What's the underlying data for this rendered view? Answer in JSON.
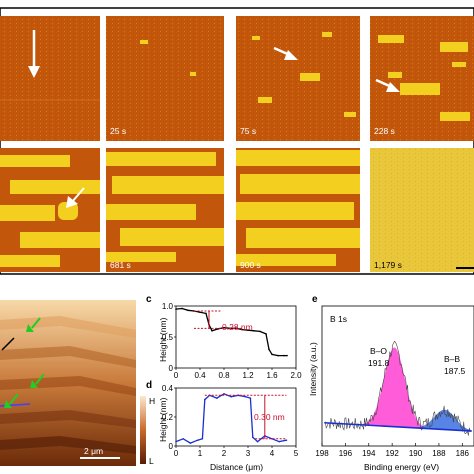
{
  "frame_row1": {
    "labels": [
      "",
      "25 s",
      "75 s",
      "228 s"
    ]
  },
  "frame_row2": {
    "labels": [
      "",
      "681 s",
      "900 s",
      "1,179 s"
    ]
  },
  "afm": {
    "colorbar_high": "H",
    "colorbar_low": "L",
    "scalebar": "2 μm"
  },
  "panels": {
    "c": {
      "label": "c",
      "annotation": "0.28 nm"
    },
    "d": {
      "label": "d",
      "annotation": "0.30 nm"
    },
    "e": {
      "label": "e",
      "title": "B 1s"
    }
  },
  "chart_data": [
    {
      "type": "line",
      "panel": "c",
      "ylabel": "Height (nm)",
      "xlim": [
        0,
        2.0
      ],
      "ylim": [
        0,
        1.0
      ],
      "x_ticks": [
        "0",
        "0.4",
        "0.8",
        "1.2",
        "1.6",
        "2.0"
      ],
      "y_ticks": [
        "0",
        "0.5",
        "1.0"
      ],
      "series": [
        {
          "x": [
            0.0,
            0.1,
            0.2,
            0.3,
            0.4,
            0.5,
            0.55,
            0.6,
            0.7,
            0.8,
            0.9,
            1.0,
            1.1,
            1.2,
            1.3,
            1.4,
            1.5,
            1.55,
            1.6,
            1.7,
            1.8,
            1.85
          ],
          "y": [
            0.95,
            0.96,
            0.93,
            0.92,
            0.9,
            0.88,
            0.7,
            0.6,
            0.63,
            0.65,
            0.64,
            0.64,
            0.62,
            0.61,
            0.6,
            0.59,
            0.55,
            0.3,
            0.22,
            0.2,
            0.2,
            0.2
          ]
        }
      ]
    },
    {
      "type": "line",
      "panel": "d",
      "ylabel": "Height (nm)",
      "xlabel": "Distance (μm)",
      "xlim": [
        0,
        5
      ],
      "ylim": [
        0,
        0.4
      ],
      "x_ticks": [
        "0",
        "1",
        "2",
        "3",
        "4",
        "5"
      ],
      "y_ticks": [
        "0",
        "0.2",
        "0.4"
      ],
      "series": [
        {
          "x": [
            0.0,
            0.3,
            0.6,
            0.9,
            1.1,
            1.2,
            1.4,
            1.7,
            2.0,
            2.3,
            2.6,
            2.9,
            3.1,
            3.2,
            3.4,
            3.7,
            4.0,
            4.3,
            4.6
          ],
          "y": [
            0.03,
            0.05,
            0.02,
            0.04,
            0.05,
            0.32,
            0.35,
            0.33,
            0.36,
            0.34,
            0.35,
            0.34,
            0.33,
            0.06,
            0.03,
            0.07,
            0.05,
            0.03,
            0.04
          ]
        }
      ]
    },
    {
      "type": "line",
      "panel": "e",
      "xlabel": "Binding energy (eV)",
      "ylabel": "Intensity (a.u.)",
      "xlim": [
        198,
        185
      ],
      "x_ticks": [
        "198",
        "196",
        "194",
        "192",
        "190",
        "188",
        "186"
      ],
      "peaks": [
        {
          "name": "B–O",
          "position": "191.8",
          "center": 191.8
        },
        {
          "name": "B–B",
          "position": "187.5",
          "center": 187.5
        }
      ]
    }
  ]
}
